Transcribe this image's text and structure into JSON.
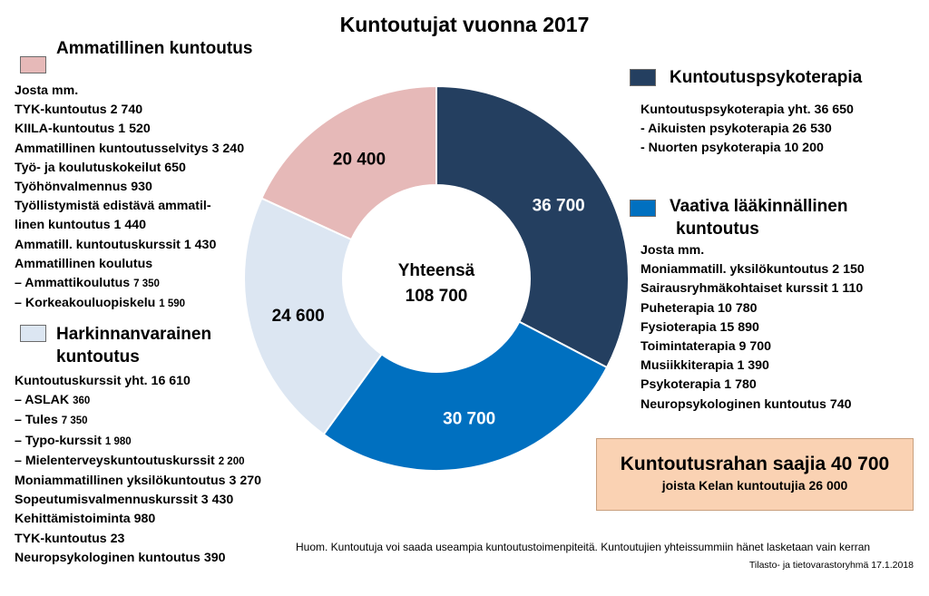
{
  "chart_data": {
    "type": "pie",
    "title": "Kuntoutujat vuonna 2017",
    "center_label": "Yhteensä",
    "center_value": "108 700",
    "slices": [
      {
        "name": "Kuntoutuspsykoterapia",
        "value": 36700,
        "label": "36 700",
        "color": "#243f60",
        "label_color": "#ffffff"
      },
      {
        "name": "Vaativa lääkinnällinen kuntoutus",
        "value": 30700,
        "label": "30 700",
        "color": "#0070c0",
        "label_color": "#ffffff"
      },
      {
        "name": "Harkinnanvarainen kuntoutus",
        "value": 24600,
        "label": "24 600",
        "color": "#dce6f2",
        "label_color": "#000000"
      },
      {
        "name": "Ammatillinen kuntoutus",
        "value": 20400,
        "label": "20 400",
        "color": "#e6b9b8",
        "label_color": "#000000"
      }
    ]
  },
  "legend_left_top": {
    "title": "Ammatillinen kuntoutus",
    "color": "#e6b9b8",
    "lines": [
      {
        "text": "Josta mm."
      },
      {
        "text": "TYK-kuntoutus 2 740"
      },
      {
        "text": "KIILA-kuntoutus  1 520"
      },
      {
        "text": "Ammatillinen kuntoutusselvitys  3 240"
      },
      {
        "text": "Työ- ja koulutuskokeilut 650"
      },
      {
        "text": "Työhönvalmennus 930"
      },
      {
        "text": "Työllistymistä edistävä ammatil-"
      },
      {
        "text": "linen kuntoutus 1 440"
      },
      {
        "text": "Ammatill. kuntoutuskurssit 1 430"
      },
      {
        "text": "Ammatillinen koulutus"
      },
      {
        "text": "– Ammattikoulutus ",
        "small": "7 350"
      },
      {
        "text": "– Korkeakouluopiskelu ",
        "small": "1 590"
      }
    ]
  },
  "legend_left_bottom": {
    "title1": "Harkinnanvarainen",
    "title2": "kuntoutus",
    "color": "#dce6f2",
    "lines": [
      {
        "text": "Kuntoutuskurssit yht. 16 610"
      },
      {
        "text": "– ASLAK  ",
        "small": "360"
      },
      {
        "text": "– Tules  ",
        "small": "7 350"
      },
      {
        "text": "– Typo-kurssit  ",
        "small": "1 980"
      },
      {
        "text": "– Mielenterveyskuntoutuskurssit  ",
        "small": "2 200"
      },
      {
        "text": "Moniammatillinen yksilökuntoutus 3 270"
      },
      {
        "text": "Sopeutumisvalmennuskurssit 3 430"
      },
      {
        "text": "Kehittämistoiminta 980"
      },
      {
        "text": "TYK-kuntoutus 23"
      },
      {
        "text": "Neuropsykologinen kuntoutus 390"
      }
    ]
  },
  "legend_right_top": {
    "title": "Kuntoutuspsykoterapia",
    "color": "#243f60",
    "lines": [
      {
        "text": "Kuntoutuspsykoterapia yht. 36 650"
      },
      {
        "text": "- Aikuisten psykoterapia 26 530"
      },
      {
        "text": "- Nuorten psykoterapia 10 200"
      }
    ]
  },
  "legend_right_bottom": {
    "title1": "Vaativa lääkinnällinen",
    "title2": "kuntoutus",
    "color": "#0070c0",
    "lines": [
      {
        "text": "Josta mm."
      },
      {
        "text": "Moniammatill. yksilökuntoutus 2 150"
      },
      {
        "text": "Sairausryhmäkohtaiset kurssit  1 110"
      },
      {
        "text": "Puheterapia 10 780"
      },
      {
        "text": "Fysioterapia  15 890"
      },
      {
        "text": "Toimintaterapia 9 700"
      },
      {
        "text": "Musiikkiterapia 1 390"
      },
      {
        "text": "Psykoterapia 1 780"
      },
      {
        "text": "Neuropsykologinen kuntoutus 740"
      }
    ]
  },
  "box": {
    "main": "Kuntoutusrahan saajia 40 700",
    "sub": "joista Kelan kuntoutujia 26 000"
  },
  "note": "Huom. Kuntoutuja voi saada useampia kuntoutustoimenpiteitä. Kuntoutujien yhteissummiin hänet lasketaan vain kerran",
  "source": "Tilasto- ja tietovarastoryhmä 17.1.2018"
}
